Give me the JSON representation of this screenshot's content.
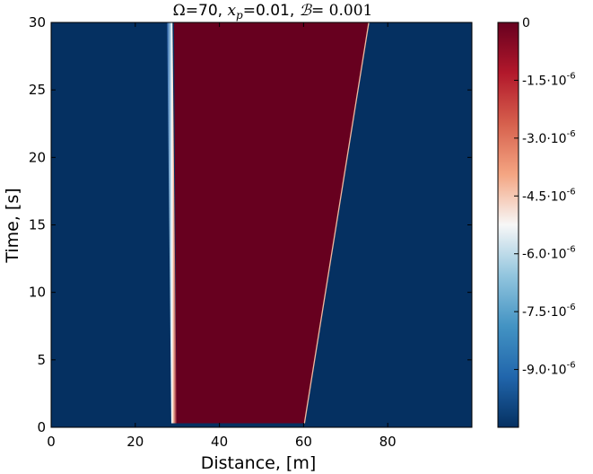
{
  "chart_data": {
    "type": "heatmap",
    "title": "Ω=70, x_p=0.01, ℬ=0.001",
    "title_parts": {
      "omega": "Ω",
      "omega_value": "=70, ",
      "xp_symbol": "x",
      "xp_subscript": "p",
      "xp_value": "=0.01, ",
      "b_symbol": "ℬ",
      "b_value": "= 0.001"
    },
    "xlabel": "Distance, [m]",
    "ylabel": "Time, [s]",
    "xlim": [
      0,
      100
    ],
    "ylim": [
      0,
      30
    ],
    "x_ticks": [
      0,
      20,
      40,
      60,
      80
    ],
    "x_tick_labels": [
      "0",
      "20",
      "40",
      "60",
      "80"
    ],
    "y_ticks": [
      0,
      5,
      10,
      15,
      20,
      25,
      30
    ],
    "y_tick_labels": [
      "0",
      "5",
      "10",
      "15",
      "20",
      "25",
      "30"
    ],
    "colorbar": {
      "min": -1.05e-05,
      "max": 0,
      "ticks": [
        0,
        -1.5e-06,
        -3e-06,
        -4.5e-06,
        -6e-06,
        -7.5e-06,
        -9e-06
      ],
      "tick_labels": [
        "0",
        "-1.5·10",
        "-3.0·10",
        "-4.5·10",
        "-6.0·10",
        "-7.5·10",
        "-9.0·10"
      ],
      "tick_exponents": [
        "",
        "-6",
        "-6",
        "-6",
        "-6",
        "-6",
        "-6"
      ],
      "colormap": "RdBu_r",
      "colors": [
        "#053061",
        "#2166ac",
        "#4393c3",
        "#92c5de",
        "#f7f7f7",
        "#f4a582",
        "#d6604d",
        "#b2182b",
        "#67001f"
      ]
    },
    "background_value": -1.05e-05,
    "regions": [
      {
        "name": "high-region",
        "value": 0,
        "left_edge": [
          [
            29.8,
            0.3
          ],
          [
            29.2,
            30
          ]
        ],
        "right_edge": [
          [
            60.2,
            0.3
          ],
          [
            75.5,
            30
          ]
        ]
      }
    ],
    "front_line": {
      "value": -4.5e-06,
      "points": [
        [
          29.2,
          0.3
        ],
        [
          28.2,
          30
        ]
      ]
    },
    "grid": false
  }
}
